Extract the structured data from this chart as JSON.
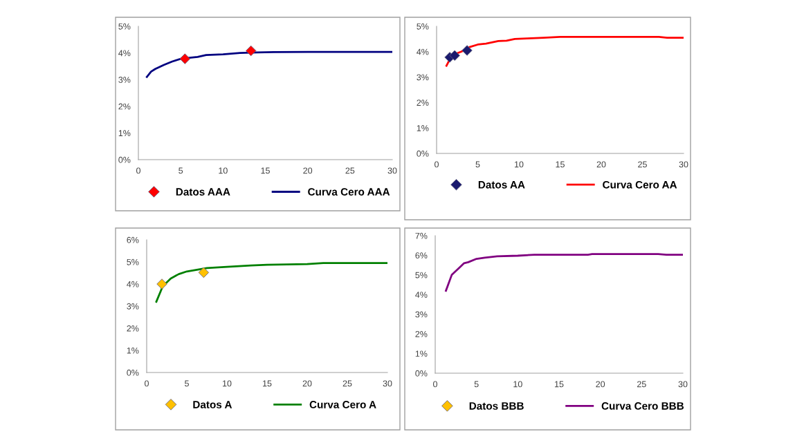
{
  "chart_data": [
    {
      "type": "line",
      "xlim": [
        0,
        30
      ],
      "xticks": [
        0,
        5,
        10,
        15,
        20,
        25,
        30
      ],
      "ylim": [
        0,
        5
      ],
      "yticks": [
        {
          "value": 0,
          "label": "0%"
        },
        {
          "value": 1,
          "label": "1%"
        },
        {
          "value": 2,
          "label": "2%"
        },
        {
          "value": 3,
          "label": "3%"
        },
        {
          "value": 4,
          "label": "4%"
        },
        {
          "value": 5,
          "label": "5%"
        }
      ],
      "grid": false,
      "legend": "bottom",
      "series": [
        {
          "name": "Datos AAA",
          "type": "scatter",
          "marker": "diamond",
          "color": "#ff0000",
          "x": [
            5.5,
            13.3
          ],
          "values": [
            3.78,
            4.08
          ]
        },
        {
          "name": "Curva Cero AAA",
          "marker": "none",
          "color": "#000080",
          "x": [
            1,
            1.5,
            2,
            3,
            4,
            5,
            6,
            7,
            8,
            10,
            12,
            14,
            16,
            20,
            25,
            30
          ],
          "values": [
            3.1,
            3.3,
            3.4,
            3.55,
            3.68,
            3.78,
            3.82,
            3.85,
            3.92,
            3.95,
            4.0,
            4.02,
            4.03,
            4.04,
            4.04,
            4.04
          ]
        }
      ]
    },
    {
      "type": "line",
      "xlim": [
        0,
        30
      ],
      "xticks": [
        0,
        5,
        10,
        15,
        20,
        25,
        30
      ],
      "ylim": [
        0,
        5
      ],
      "yticks": [
        {
          "value": 0,
          "label": "0%"
        },
        {
          "value": 1,
          "label": "1%"
        },
        {
          "value": 2,
          "label": "2%"
        },
        {
          "value": 3,
          "label": "3%"
        },
        {
          "value": 4,
          "label": "4%"
        },
        {
          "value": 5,
          "label": "5%"
        }
      ],
      "grid": false,
      "legend": "bottom",
      "series": [
        {
          "name": "Datos AA",
          "type": "scatter",
          "marker": "diamond",
          "color": "#1a1a6e",
          "x": [
            1.6,
            2.2,
            3.7
          ],
          "values": [
            3.78,
            3.85,
            4.05
          ]
        },
        {
          "name": "Curva Cero AA",
          "marker": "none",
          "color": "#ff0000",
          "x": [
            1.2,
            1.6,
            2,
            3,
            4,
            5,
            6,
            7.5,
            8.5,
            9.5,
            11,
            13,
            15,
            20,
            27,
            28,
            30
          ],
          "values": [
            3.45,
            3.7,
            3.88,
            4.0,
            4.18,
            4.28,
            4.32,
            4.42,
            4.43,
            4.5,
            4.52,
            4.55,
            4.58,
            4.58,
            4.58,
            4.55,
            4.55
          ]
        }
      ]
    },
    {
      "type": "line",
      "xlim": [
        0,
        30
      ],
      "xticks": [
        0,
        5,
        10,
        15,
        20,
        25,
        30
      ],
      "ylim": [
        0,
        6
      ],
      "yticks": [
        {
          "value": 0,
          "label": "0%"
        },
        {
          "value": 1,
          "label": "1%"
        },
        {
          "value": 2,
          "label": "2%"
        },
        {
          "value": 3,
          "label": "3%"
        },
        {
          "value": 4,
          "label": "4%"
        },
        {
          "value": 5,
          "label": "5%"
        },
        {
          "value": 6,
          "label": "6%"
        }
      ],
      "grid": false,
      "legend": "bottom",
      "series": [
        {
          "name": "Datos A",
          "type": "scatter",
          "marker": "diamond",
          "color": "#ffc000",
          "x": [
            1.9,
            7.1
          ],
          "values": [
            4.0,
            4.52
          ]
        },
        {
          "name": "Curva Cero A",
          "marker": "none",
          "color": "#008000",
          "x": [
            1.2,
            2,
            3,
            4,
            5,
            6,
            7.5,
            10,
            13,
            15,
            20,
            22,
            30
          ],
          "values": [
            3.2,
            3.9,
            4.25,
            4.45,
            4.57,
            4.63,
            4.72,
            4.78,
            4.84,
            4.87,
            4.9,
            4.95,
            4.95
          ]
        }
      ]
    },
    {
      "type": "line",
      "xlim": [
        0,
        30
      ],
      "xticks": [
        0,
        5,
        10,
        15,
        20,
        25,
        30
      ],
      "ylim": [
        0,
        7
      ],
      "yticks": [
        {
          "value": 0,
          "label": "0%"
        },
        {
          "value": 1,
          "label": "1%"
        },
        {
          "value": 2,
          "label": "2%"
        },
        {
          "value": 3,
          "label": "3%"
        },
        {
          "value": 4,
          "label": "4%"
        },
        {
          "value": 5,
          "label": "5%"
        },
        {
          "value": 6,
          "label": "6%"
        },
        {
          "value": 7,
          "label": "7%"
        }
      ],
      "grid": false,
      "legend": "bottom",
      "series": [
        {
          "name": "Datos BBB",
          "type": "scatter",
          "marker": "diamond",
          "color": "#ffc000"
        },
        {
          "name": "Curva Cero BBB",
          "marker": "none",
          "color": "#800080",
          "x": [
            1.3,
            2,
            3,
            3.5,
            4,
            5,
            6,
            7.5,
            10,
            12,
            18.5,
            19,
            27,
            28,
            30
          ],
          "values": [
            4.2,
            5.0,
            5.4,
            5.6,
            5.65,
            5.82,
            5.88,
            5.95,
            5.98,
            6.03,
            6.03,
            6.06,
            6.06,
            6.03,
            6.03
          ]
        }
      ]
    }
  ]
}
